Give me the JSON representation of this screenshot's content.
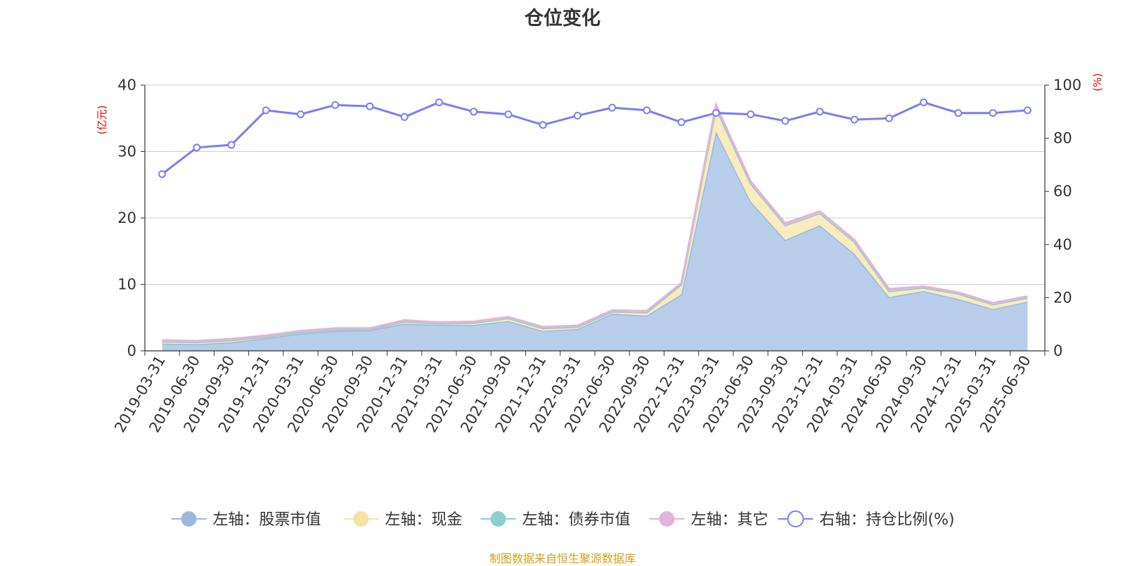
{
  "chart_data": {
    "type": "area",
    "title": "仓位变化",
    "categories": [
      "2019-03-31",
      "2019-06-30",
      "2019-09-30",
      "2019-12-31",
      "2020-03-31",
      "2020-06-30",
      "2020-09-30",
      "2020-12-31",
      "2021-03-31",
      "2021-06-30",
      "2021-09-30",
      "2021-12-31",
      "2022-03-31",
      "2022-06-30",
      "2022-09-30",
      "2022-12-31",
      "2023-03-31",
      "2023-06-30",
      "2023-09-30",
      "2023-12-31",
      "2024-03-31",
      "2024-06-30",
      "2024-09-30",
      "2024-12-31",
      "2025-03-31",
      "2025-06-30"
    ],
    "left_axis": {
      "unit_label": "(亿元)",
      "ylim": [
        0,
        40
      ],
      "ticks": [
        0,
        10,
        20,
        30,
        40
      ]
    },
    "right_axis": {
      "unit_label": "(%)",
      "ylim": [
        0,
        100
      ],
      "ticks": [
        0,
        20,
        40,
        60,
        80,
        100
      ]
    },
    "grid": true,
    "legend_position": "bottom",
    "series": [
      {
        "name": "左轴：股票市值",
        "axis": "left",
        "type": "area",
        "color": "#9bb8e0",
        "fill": "#b7cdea",
        "values": [
          1.1,
          1.0,
          1.3,
          1.9,
          2.6,
          3.0,
          3.1,
          4.1,
          3.9,
          3.9,
          4.5,
          3.0,
          3.3,
          5.6,
          5.3,
          8.5,
          33.0,
          22.5,
          16.7,
          18.9,
          14.6,
          8.1,
          9.0,
          7.8,
          6.3,
          7.4
        ]
      },
      {
        "name": "左轴：现金",
        "axis": "left",
        "type": "area",
        "color": "#f5e3a2",
        "fill": "#f8ebbc",
        "values": [
          0.3,
          0.3,
          0.3,
          0.2,
          0.2,
          0.2,
          0.1,
          0.3,
          0.2,
          0.3,
          0.4,
          0.4,
          0.3,
          0.3,
          0.5,
          1.5,
          3.6,
          2.7,
          2.2,
          1.8,
          1.8,
          0.9,
          0.5,
          0.8,
          0.7,
          0.6
        ]
      },
      {
        "name": "左轴：债券市值",
        "axis": "left",
        "type": "area",
        "color": "#8ccfcf",
        "fill": "#a8dcdc",
        "values": [
          0,
          0,
          0,
          0,
          0,
          0,
          0,
          0,
          0,
          0,
          0,
          0,
          0,
          0,
          0,
          0,
          0,
          0,
          0,
          0,
          0,
          0,
          0,
          0,
          0,
          0
        ]
      },
      {
        "name": "左轴：其它",
        "axis": "left",
        "type": "area",
        "color": "#e3b3d9",
        "fill": "#e8c0df",
        "values": [
          0.2,
          0.2,
          0.2,
          0.2,
          0.2,
          0.2,
          0.2,
          0.2,
          0.2,
          0.2,
          0.2,
          0.2,
          0.2,
          0.2,
          0.2,
          0.2,
          0.4,
          0.3,
          0.3,
          0.3,
          0.3,
          0.3,
          0.2,
          0.2,
          0.2,
          0.2
        ]
      },
      {
        "name": "右轴：持仓比例(%)",
        "axis": "right",
        "type": "line",
        "color": "#7b7ef0",
        "values": [
          66.5,
          76.5,
          77.5,
          90.5,
          89.0,
          92.5,
          92.0,
          88.0,
          93.5,
          90.0,
          89.0,
          85.0,
          88.5,
          91.5,
          90.5,
          86.0,
          89.5,
          89.0,
          86.5,
          90.0,
          87.0,
          87.5,
          93.5,
          89.5,
          89.5,
          90.5
        ]
      }
    ]
  },
  "footer": {
    "source": "制图数据来自恒生聚源数据库"
  }
}
